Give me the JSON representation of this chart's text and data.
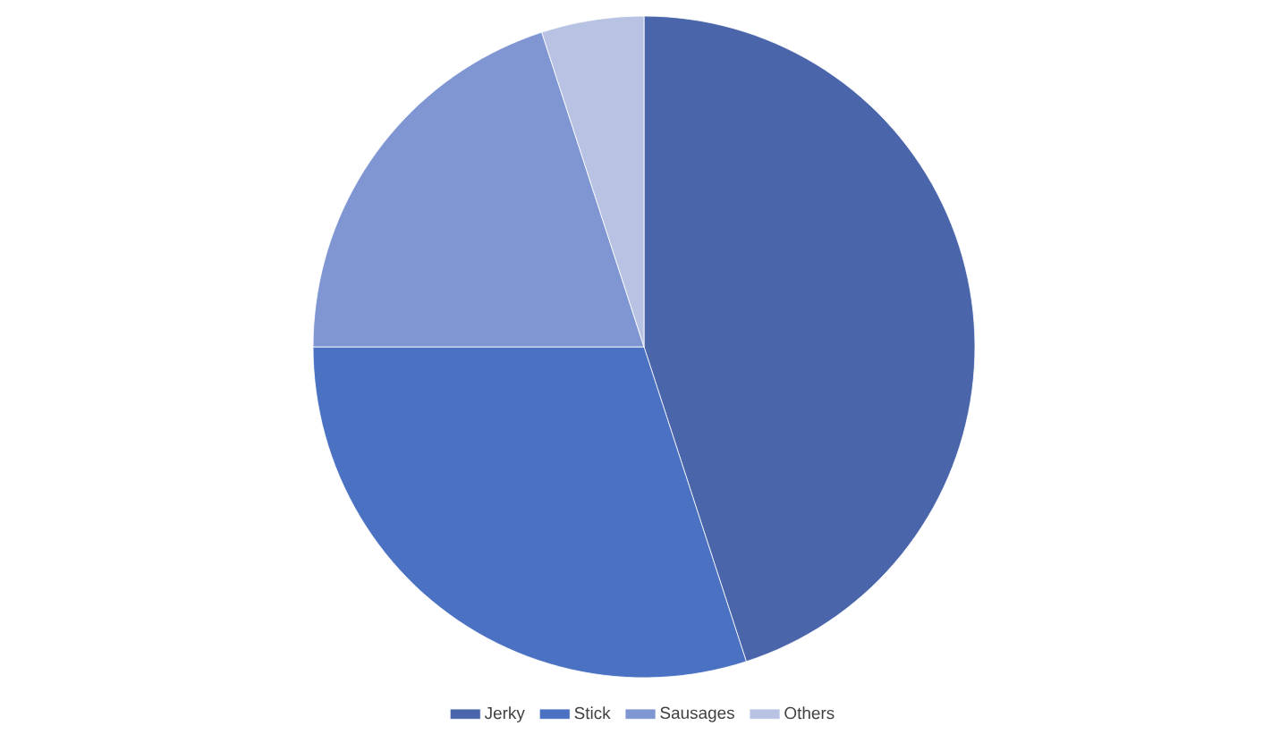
{
  "chart_data": {
    "type": "pie",
    "categories": [
      "Jerky",
      "Stick",
      "Sausages",
      "Others"
    ],
    "values": [
      45,
      30,
      20,
      5
    ],
    "colors": [
      "#4a65a9",
      "#4a71c2",
      "#7f96d3",
      "#b8c3e4"
    ],
    "legend": "bottom"
  }
}
